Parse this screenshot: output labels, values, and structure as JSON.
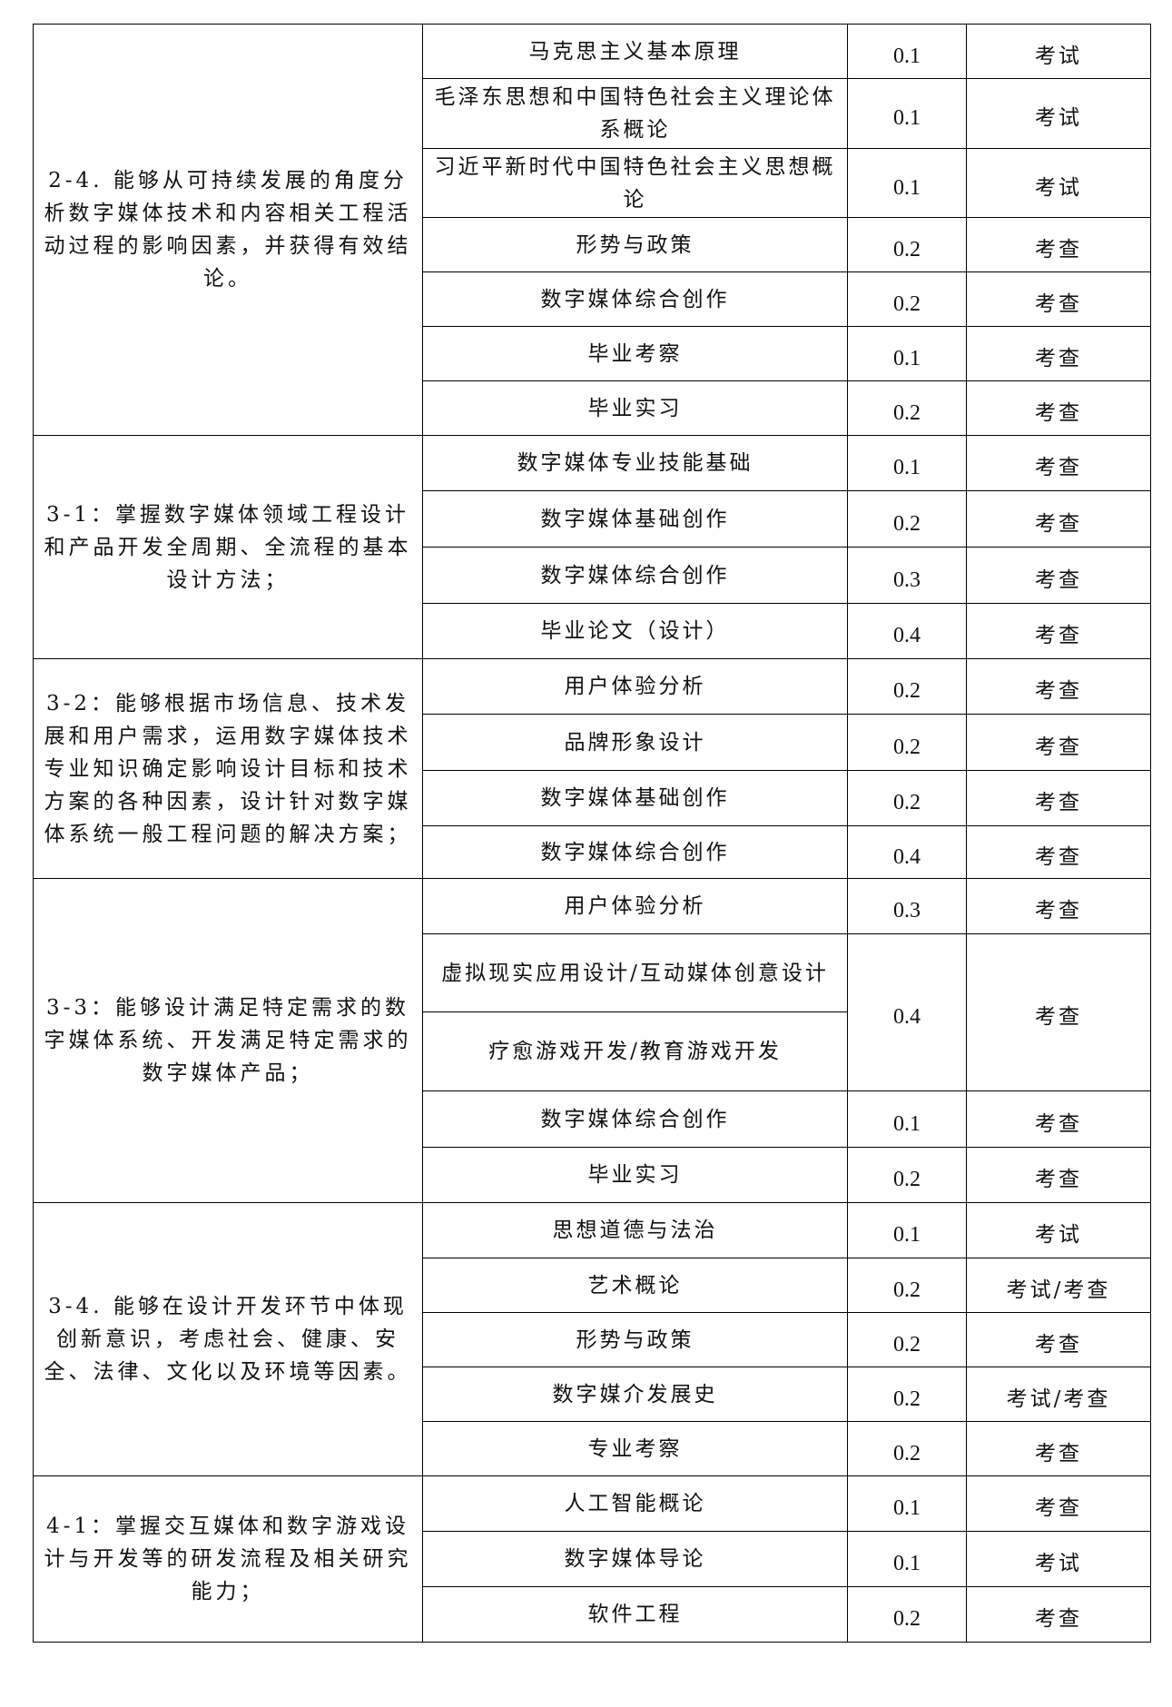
{
  "groups": [
    {
      "indicator": "2-4. 能够从可持续发展的角度分析数字媒体技术和内容相关工程活动过程的影响因素，并获得有效结论。",
      "rows": [
        {
          "course": "马克思主义基本原理",
          "weight": "0.1",
          "method": "考试"
        },
        {
          "course": "毛泽东思想和中国特色社会主义理论体系概论",
          "weight": "0.1",
          "method": "考试"
        },
        {
          "course": "习近平新时代中国特色社会主义思想概论",
          "weight": "0.1",
          "method": "考试"
        },
        {
          "course": "形势与政策",
          "weight": "0.2",
          "method": "考查"
        },
        {
          "course": "数字媒体综合创作",
          "weight": "0.2",
          "method": "考查"
        },
        {
          "course": "毕业考察",
          "weight": "0.1",
          "method": "考查"
        },
        {
          "course": "毕业实习",
          "weight": "0.2",
          "method": "考查"
        }
      ]
    },
    {
      "indicator": "3-1：掌握数字媒体领域工程设计和产品开发全周期、全流程的基本设计方法；",
      "rows": [
        {
          "course": "数字媒体专业技能基础",
          "weight": "0.1",
          "method": "考查"
        },
        {
          "course": "数字媒体基础创作",
          "weight": "0.2",
          "method": "考查"
        },
        {
          "course": "数字媒体综合创作",
          "weight": "0.3",
          "method": "考查"
        },
        {
          "course": "毕业论文（设计）",
          "weight": "0.4",
          "method": "考查"
        }
      ]
    },
    {
      "indicator": "3-2：能够根据市场信息、技术发展和用户需求，运用数字媒体技术专业知识确定影响设计目标和技术方案的各种因素，设计针对数字媒体系统一般工程问题的解决方案；",
      "rows": [
        {
          "course": "用户体验分析",
          "weight": "0.2",
          "method": "考查"
        },
        {
          "course": "品牌形象设计",
          "weight": "0.2",
          "method": "考查"
        },
        {
          "course": "数字媒体基础创作",
          "weight": "0.2",
          "method": "考查"
        },
        {
          "course": "数字媒体综合创作",
          "weight": "0.4",
          "method": "考查"
        }
      ]
    },
    {
      "indicator": "3-3：能够设计满足特定需求的数字媒体系统、开发满足特定需求的数字媒体产品；",
      "rows": [
        {
          "course": "用户体验分析",
          "weight": "0.3",
          "method": "考查"
        },
        {
          "course": "虚拟现实应用设计/互动媒体创意设计",
          "weight": "0.4",
          "method": "考查",
          "span": 2
        },
        {
          "course": "疗愈游戏开发/教育游戏开发"
        },
        {
          "course": "数字媒体综合创作",
          "weight": "0.1",
          "method": "考查"
        },
        {
          "course": "毕业实习",
          "weight": "0.2",
          "method": "考查"
        }
      ]
    },
    {
      "indicator": "3-4. 能够在设计开发环节中体现创新意识，考虑社会、健康、安全、法律、文化以及环境等因素。",
      "rows": [
        {
          "course": "思想道德与法治",
          "weight": "0.1",
          "method": "考试"
        },
        {
          "course": "艺术概论",
          "weight": "0.2",
          "method": "考试/考查"
        },
        {
          "course": "形势与政策",
          "weight": "0.2",
          "method": "考查"
        },
        {
          "course": "数字媒介发展史",
          "weight": "0.2",
          "method": "考试/考查"
        },
        {
          "course": "专业考察",
          "weight": "0.2",
          "method": "考查"
        }
      ]
    },
    {
      "indicator": "4-1：掌握交互媒体和数字游戏设计与开发等的研发流程及相关研究能力；",
      "rows": [
        {
          "course": "人工智能概论",
          "weight": "0.1",
          "method": "考查"
        },
        {
          "course": "数字媒体导论",
          "weight": "0.1",
          "method": "考试"
        },
        {
          "course": "软件工程",
          "weight": "0.2",
          "method": "考查"
        }
      ]
    }
  ]
}
